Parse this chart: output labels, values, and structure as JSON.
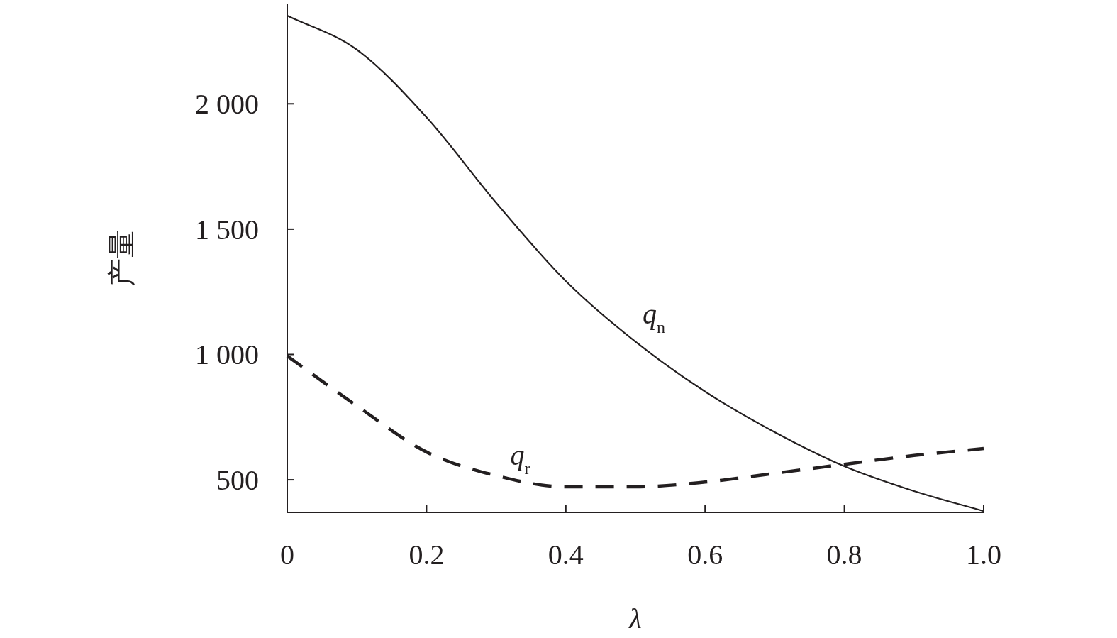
{
  "chart_data": {
    "type": "line",
    "xlabel": "λ",
    "ylabel": "产量",
    "x": [
      0,
      0.1,
      0.2,
      0.3,
      0.4,
      0.5,
      0.6,
      0.7,
      0.8,
      0.9,
      1.0
    ],
    "series": [
      {
        "name": "q$_{n}$",
        "color": "#231f20",
        "line_style": "solid",
        "values": [
          2352,
          2216,
          1946,
          1605,
          1293,
          1051,
          852,
          690,
          554,
          455,
          375
        ]
      },
      {
        "name": "q$_{r}$",
        "color": "#231f20",
        "line_style": "dashed",
        "values": [
          994,
          795,
          611,
          517,
          472,
          472,
          491,
          526,
          562,
          597,
          625
        ]
      }
    ],
    "xlim": [
      0,
      1.0
    ],
    "ylim": [
      370,
      2400
    ],
    "xticks": [
      0,
      0.2,
      0.4,
      0.6,
      0.8,
      {
        "value": 1.0,
        "label": "1.0"
      }
    ],
    "yticks": [
      500,
      {
        "value": 1000,
        "label": "1 000"
      },
      {
        "value": 1500,
        "label": "1 500"
      },
      {
        "value": 2000,
        "label": "2 000"
      }
    ],
    "grid": false,
    "marker": "none"
  }
}
